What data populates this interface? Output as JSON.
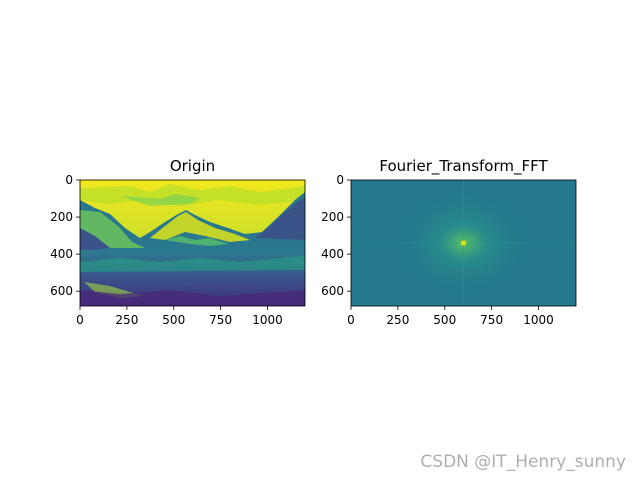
{
  "chart_data": [
    {
      "type": "heatmap",
      "title": "Origin",
      "image": "grayscale-mountain-photo-viridis",
      "xlim": [
        0,
        1200
      ],
      "ylim": [
        680,
        0
      ],
      "xticks": [
        0,
        250,
        500,
        750,
        1000
      ],
      "yticks": [
        0,
        200,
        400,
        600
      ],
      "xticklabels": [
        "0",
        "250",
        "500",
        "750",
        "1000"
      ],
      "yticklabels": [
        "0",
        "200",
        "400",
        "600"
      ],
      "colormap": "viridis"
    },
    {
      "type": "heatmap",
      "title": "Fourier_Transform_FFT",
      "image": "fft-magnitude-spectrum-viridis",
      "xlim": [
        0,
        1200
      ],
      "ylim": [
        680,
        0
      ],
      "xticks": [
        0,
        250,
        500,
        750,
        1000
      ],
      "yticks": [
        0,
        200,
        400,
        600
      ],
      "xticklabels": [
        "0",
        "250",
        "500",
        "750",
        "1000"
      ],
      "yticklabels": [
        "0",
        "200",
        "400",
        "600"
      ],
      "colormap": "viridis",
      "center_peak": [
        600,
        340
      ]
    }
  ],
  "watermark": "CSDN @IT_Henry_sunny",
  "colors": {
    "viridis_dark": "#440154",
    "viridis_blue": "#31688e",
    "viridis_teal": "#21908d",
    "viridis_green": "#35b779",
    "viridis_yellow": "#fde725",
    "fft_base": "#25788d"
  }
}
